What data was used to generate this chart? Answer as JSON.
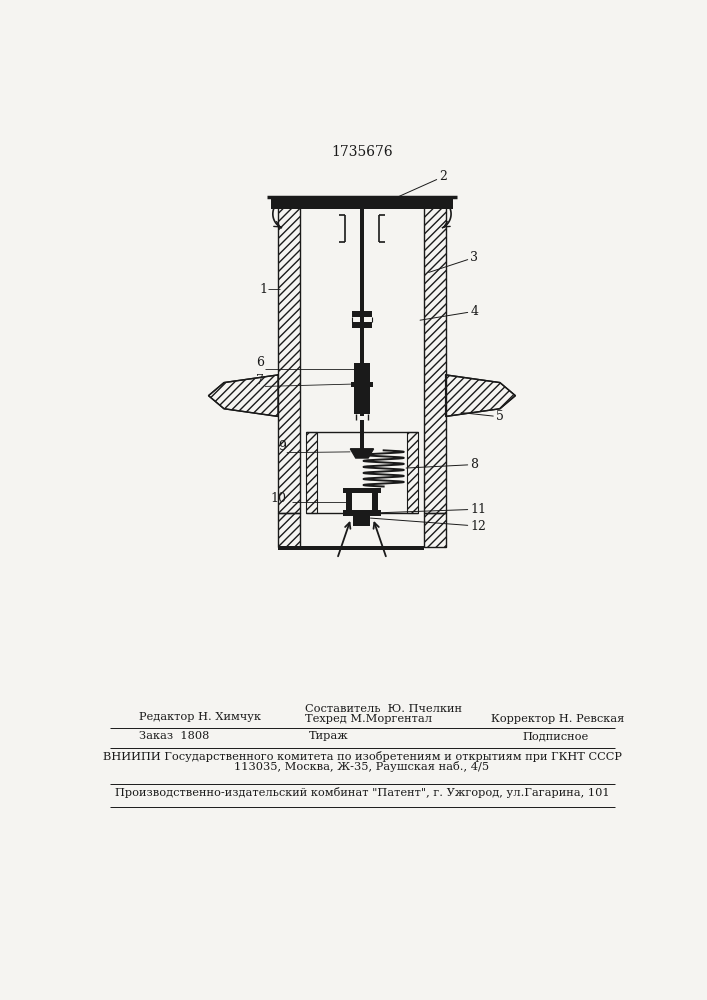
{
  "patent_number": "1735676",
  "bg_color": "#f5f4f1",
  "line_color": "#1a1a1a",
  "editor_line": "Редактор Н. Химчук",
  "composer_line1": "Составитель  Ю. Пчелкин",
  "composer_line2": "Техред М.Моргентал",
  "corrector_line": "Корректор Н. Ревская",
  "order_line": "Заказ  1808",
  "tirazh_line": "Тираж",
  "podpisnoe_line": "Подписное",
  "vniip_line": "ВНИИПИ Государственного комитета по изобретениям и открытиям при ГКНТ СССР",
  "address_line": "113035, Москва, Ж-35, Раушская наб., 4/5",
  "factory_line": "Производственно-издательский комбинат \"Патент\", г. Ужгород, ул.Гагарина, 101"
}
